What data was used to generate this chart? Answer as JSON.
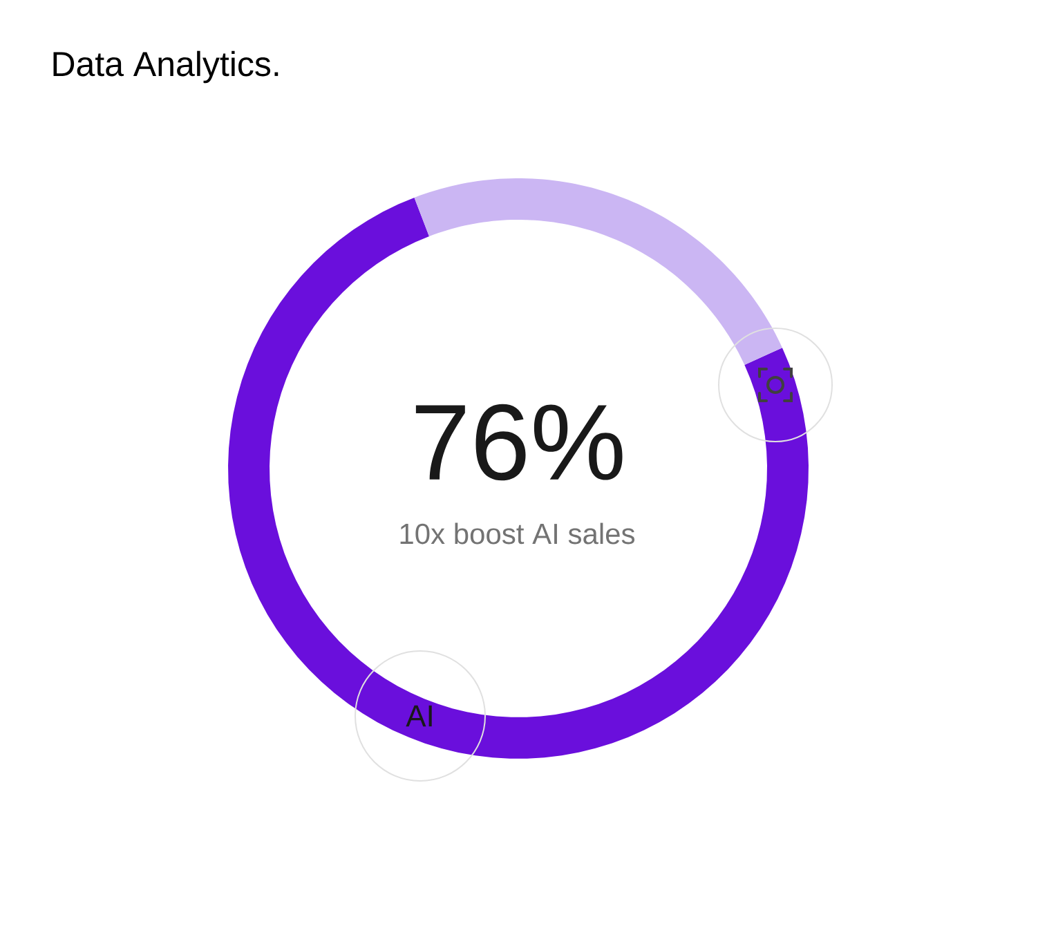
{
  "chart_data": {
    "type": "donut",
    "title": "Data Analytics.",
    "categories": [
      null,
      null
    ],
    "values": [
      76,
      24
    ],
    "colors": [
      "#6a0fdc",
      "#cbb6f3"
    ],
    "annotations": [
      "76%",
      "10x boost AI sales",
      "AI"
    ]
  }
}
